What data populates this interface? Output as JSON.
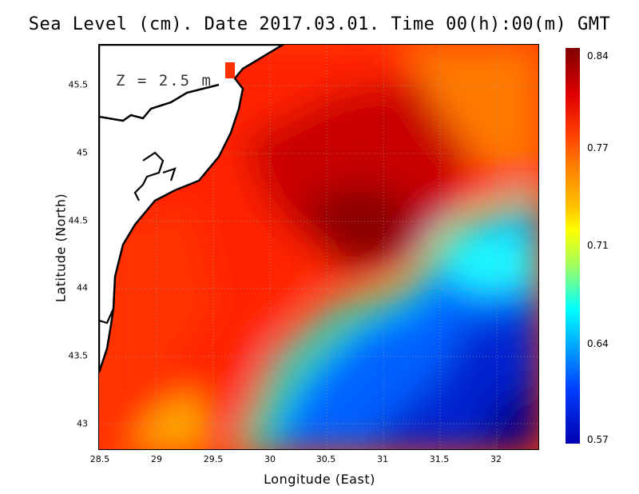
{
  "title": "Sea Level (cm). Date 2017.03.01. Time 00(h):00(m) GMT",
  "depth_label": "Z = 2.5 m",
  "x_axis": {
    "label": "Longitude (East)",
    "ticks": [
      "28.5",
      "29",
      "29.5",
      "30",
      "30.5",
      "31",
      "31.5",
      "32"
    ],
    "range": [
      28.5,
      32.4
    ]
  },
  "y_axis": {
    "label": "Latitude (North)",
    "ticks": [
      "43",
      "43.5",
      "44",
      "44.5",
      "45",
      "45.5"
    ],
    "range": [
      42.8,
      45.8
    ]
  },
  "colorbar": {
    "ticks": [
      "0.84",
      "0.77",
      "0.71",
      "0.64",
      "0.57"
    ],
    "range": [
      0.57,
      0.84
    ]
  },
  "grid": true,
  "colors": {
    "land": "#ffffff",
    "coastline": "#000000",
    "high": "#800000",
    "low": "#0000b0"
  }
}
